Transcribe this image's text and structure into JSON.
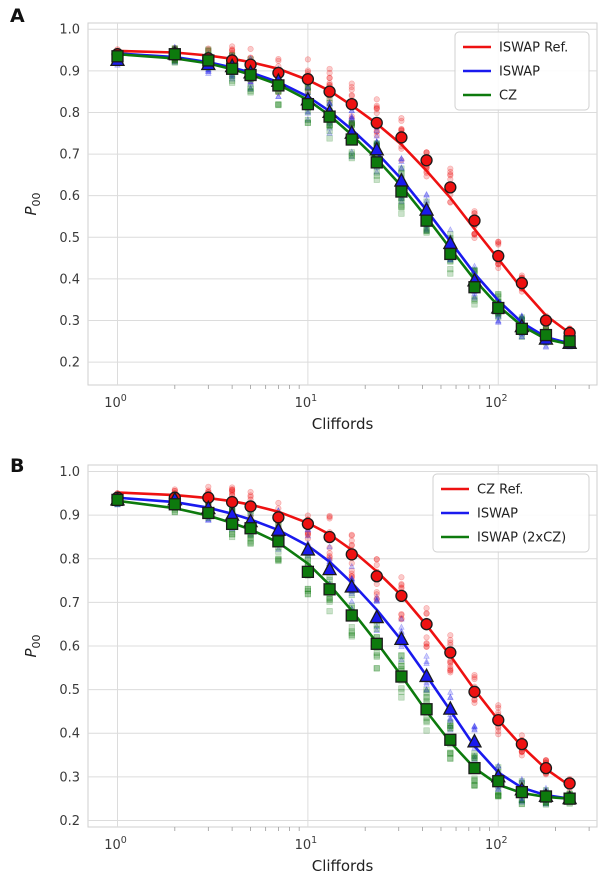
{
  "figure": {
    "panel_labels": [
      "A",
      "B"
    ]
  },
  "chart_data": [
    {
      "type": "scatter",
      "panel": "A",
      "xlabel": "Cliffords",
      "ylabel": "P",
      "ylabel_sub": "00",
      "x_scale": "log",
      "xlim": [
        0.7,
        330
      ],
      "ylim": [
        0.145,
        1.015
      ],
      "x_ticks": [
        {
          "base": "10",
          "exp": "0"
        },
        {
          "base": "10",
          "exp": "1"
        },
        {
          "base": "10",
          "exp": "2"
        }
      ],
      "y_ticks": [
        "0.2",
        "0.3",
        "0.4",
        "0.5",
        "0.6",
        "0.7",
        "0.8",
        "0.9",
        "1.0"
      ],
      "grid": true,
      "legend": "top-right",
      "x": [
        1,
        2,
        3,
        4,
        5,
        7,
        10,
        13,
        17,
        23,
        31,
        42,
        56,
        75,
        100,
        133,
        178,
        237
      ],
      "series": [
        {
          "name": "ISWAP Ref.",
          "color": "#ee1111",
          "marker": "circle",
          "values": [
            0.94,
            0.94,
            0.93,
            0.925,
            0.915,
            0.895,
            0.88,
            0.85,
            0.82,
            0.775,
            0.74,
            0.685,
            0.62,
            0.54,
            0.455,
            0.39,
            0.3,
            0.27
          ],
          "fit": [
            0.948,
            0.944,
            0.937,
            0.929,
            0.921,
            0.905,
            0.878,
            0.852,
            0.817,
            0.773,
            0.723,
            0.66,
            0.595,
            0.52,
            0.448,
            0.377,
            0.312,
            0.27
          ]
        },
        {
          "name": "ISWAP",
          "color": "#1a1aee",
          "marker": "triangle",
          "values": [
            0.925,
            0.94,
            0.915,
            0.91,
            0.895,
            0.875,
            0.83,
            0.8,
            0.75,
            0.71,
            0.635,
            0.565,
            0.485,
            0.395,
            0.33,
            0.285,
            0.255,
            0.245
          ],
          "fit": [
            0.942,
            0.933,
            0.921,
            0.908,
            0.896,
            0.873,
            0.838,
            0.803,
            0.759,
            0.703,
            0.64,
            0.565,
            0.49,
            0.413,
            0.348,
            0.295,
            0.26,
            0.245
          ]
        },
        {
          "name": "CZ",
          "color": "#0d7a0d",
          "marker": "square",
          "values": [
            0.935,
            0.94,
            0.925,
            0.905,
            0.89,
            0.865,
            0.82,
            0.79,
            0.735,
            0.68,
            0.61,
            0.54,
            0.46,
            0.38,
            0.33,
            0.28,
            0.265,
            0.25
          ],
          "fit": [
            0.94,
            0.93,
            0.918,
            0.904,
            0.891,
            0.867,
            0.83,
            0.793,
            0.746,
            0.688,
            0.623,
            0.548,
            0.473,
            0.398,
            0.335,
            0.287,
            0.255,
            0.243
          ]
        }
      ]
    },
    {
      "type": "scatter",
      "panel": "B",
      "xlabel": "Cliffords",
      "ylabel": "P",
      "ylabel_sub": "00",
      "x_scale": "log",
      "xlim": [
        0.7,
        330
      ],
      "ylim": [
        0.185,
        1.015
      ],
      "x_ticks": [
        {
          "base": "10",
          "exp": "0"
        },
        {
          "base": "10",
          "exp": "1"
        },
        {
          "base": "10",
          "exp": "2"
        }
      ],
      "y_ticks": [
        "0.2",
        "0.3",
        "0.4",
        "0.5",
        "0.6",
        "0.7",
        "0.8",
        "0.9",
        "1.0"
      ],
      "grid": true,
      "legend": "top-right",
      "x": [
        1,
        2,
        3,
        4,
        5,
        7,
        10,
        13,
        17,
        23,
        31,
        42,
        56,
        75,
        100,
        133,
        178,
        237
      ],
      "series": [
        {
          "name": "CZ Ref.",
          "color": "#ee1111",
          "marker": "circle",
          "values": [
            0.94,
            0.94,
            0.94,
            0.93,
            0.92,
            0.895,
            0.88,
            0.85,
            0.81,
            0.76,
            0.715,
            0.65,
            0.585,
            0.495,
            0.43,
            0.375,
            0.32,
            0.285
          ],
          "fit": [
            0.952,
            0.946,
            0.939,
            0.932,
            0.924,
            0.908,
            0.882,
            0.856,
            0.82,
            0.771,
            0.716,
            0.648,
            0.578,
            0.5,
            0.43,
            0.37,
            0.318,
            0.28
          ]
        },
        {
          "name": "ISWAP",
          "color": "#1a1aee",
          "marker": "triangle",
          "values": [
            0.935,
            0.935,
            0.915,
            0.9,
            0.885,
            0.865,
            0.82,
            0.775,
            0.735,
            0.665,
            0.615,
            0.53,
            0.455,
            0.38,
            0.3,
            0.27,
            0.255,
            0.25
          ],
          "fit": [
            0.94,
            0.93,
            0.917,
            0.903,
            0.89,
            0.866,
            0.83,
            0.793,
            0.745,
            0.683,
            0.613,
            0.532,
            0.452,
            0.37,
            0.31,
            0.275,
            0.258,
            0.25
          ]
        },
        {
          "name": "ISWAP (2xCZ)",
          "color": "#0d7a0d",
          "marker": "square",
          "values": [
            0.935,
            0.925,
            0.905,
            0.88,
            0.87,
            0.84,
            0.77,
            0.73,
            0.67,
            0.605,
            0.53,
            0.455,
            0.385,
            0.32,
            0.29,
            0.265,
            0.255,
            0.25
          ],
          "fit": [
            0.933,
            0.916,
            0.899,
            0.882,
            0.867,
            0.837,
            0.789,
            0.74,
            0.681,
            0.608,
            0.532,
            0.45,
            0.38,
            0.32,
            0.282,
            0.263,
            0.254,
            0.25
          ]
        }
      ]
    }
  ]
}
